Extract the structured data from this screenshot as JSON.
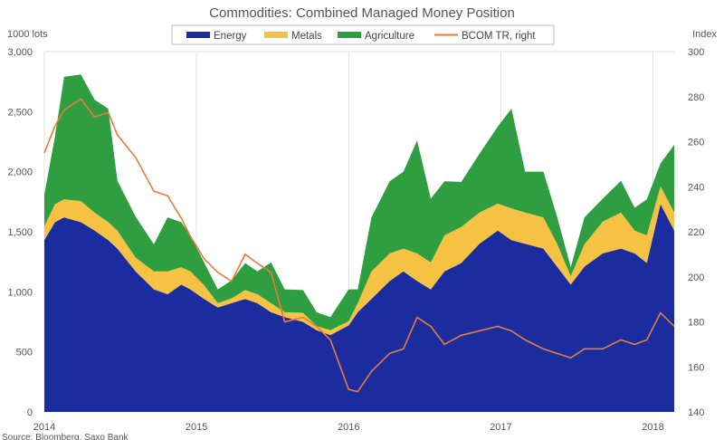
{
  "chart_data": {
    "type": "area",
    "title": "Commodities: Combined Managed Money Position",
    "ylabel_left": "1000 lots",
    "ylabel_right": "Index",
    "source": "Source: Bloomberg, Saxo Bank",
    "ylim_left": [
      0,
      3000
    ],
    "ylim_right": [
      140,
      300
    ],
    "xlim": [
      2014,
      2018.14
    ],
    "left_ticks": [
      "0",
      "500",
      "1,000",
      "1,500",
      "2,000",
      "2,500",
      "3,000"
    ],
    "left_tick_values": [
      0,
      500,
      1000,
      1500,
      2000,
      2500,
      3000
    ],
    "right_ticks": [
      "140",
      "160",
      "180",
      "200",
      "220",
      "240",
      "260",
      "280",
      "300"
    ],
    "right_tick_values": [
      140,
      160,
      180,
      200,
      220,
      240,
      260,
      280,
      300
    ],
    "x_ticks": [
      "2014",
      "2015",
      "2016",
      "2017",
      "2018"
    ],
    "x_tick_values": [
      2014,
      2015,
      2016,
      2017,
      2018
    ],
    "legend": [
      "Energy",
      "Metals",
      "Agriculture",
      "BCOM TR, right"
    ],
    "legend_placement": "top-center",
    "colors": {
      "energy": "#1a2c9e",
      "metals": "#f6c243",
      "agriculture": "#2f9e40",
      "bcom": "#ec7a3c"
    },
    "x": [
      2014.0,
      2014.07,
      2014.13,
      2014.24,
      2014.33,
      2014.42,
      2014.48,
      2014.6,
      2014.72,
      2014.81,
      2014.9,
      2014.96,
      2015.05,
      2015.14,
      2015.23,
      2015.32,
      2015.4,
      2015.49,
      2015.58,
      2015.7,
      2015.79,
      2015.88,
      2016.0,
      2016.06,
      2016.15,
      2016.27,
      2016.36,
      2016.45,
      2016.54,
      2016.63,
      2016.74,
      2016.86,
      2016.98,
      2017.07,
      2017.16,
      2017.28,
      2017.37,
      2017.46,
      2017.55,
      2017.67,
      2017.79,
      2017.88,
      2017.96,
      2018.05,
      2018.14
    ],
    "series": [
      {
        "name": "Energy",
        "axis": "left",
        "stacked": true,
        "values": [
          1430,
          1580,
          1620,
          1580,
          1510,
          1430,
          1360,
          1170,
          1020,
          980,
          1060,
          1020,
          940,
          870,
          905,
          940,
          905,
          830,
          790,
          750,
          680,
          640,
          720,
          830,
          940,
          1090,
          1170,
          1090,
          1020,
          1170,
          1240,
          1400,
          1510,
          1430,
          1400,
          1360,
          1210,
          1060,
          1210,
          1320,
          1360,
          1320,
          1240,
          1730,
          1510
        ]
      },
      {
        "name": "Metals",
        "axis": "left",
        "stacked": true,
        "values": [
          115,
          150,
          150,
          175,
          150,
          150,
          150,
          115,
          150,
          190,
          145,
          150,
          115,
          35,
          40,
          75,
          75,
          75,
          40,
          75,
          35,
          40,
          35,
          75,
          230,
          230,
          190,
          230,
          225,
          300,
          300,
          260,
          225,
          265,
          260,
          260,
          190,
          70,
          185,
          265,
          300,
          190,
          230,
          150,
          150
        ]
      },
      {
        "name": "Agriculture",
        "axis": "left",
        "stacked": true,
        "values": [
          265,
          565,
          1020,
          1055,
          940,
          945,
          415,
          340,
          225,
          450,
          375,
          300,
          190,
          115,
          150,
          225,
          190,
          340,
          190,
          190,
          115,
          110,
          265,
          115,
          450,
          600,
          640,
          940,
          530,
          450,
          375,
          490,
          640,
          830,
          340,
          380,
          225,
          75,
          225,
          190,
          265,
          190,
          300,
          190,
          565
        ]
      },
      {
        "name": "BCOM TR, right",
        "axis": "right",
        "type": "line",
        "values": [
          255,
          267,
          274,
          279,
          271,
          273,
          263,
          253,
          238,
          236,
          226,
          218,
          208,
          202,
          198,
          210,
          206,
          202,
          180,
          182,
          178,
          172,
          150,
          149,
          158,
          166,
          168,
          182,
          178,
          170,
          174,
          176,
          178,
          176,
          172,
          168,
          166,
          164,
          168,
          168,
          172,
          170,
          172,
          184,
          178
        ]
      }
    ]
  }
}
